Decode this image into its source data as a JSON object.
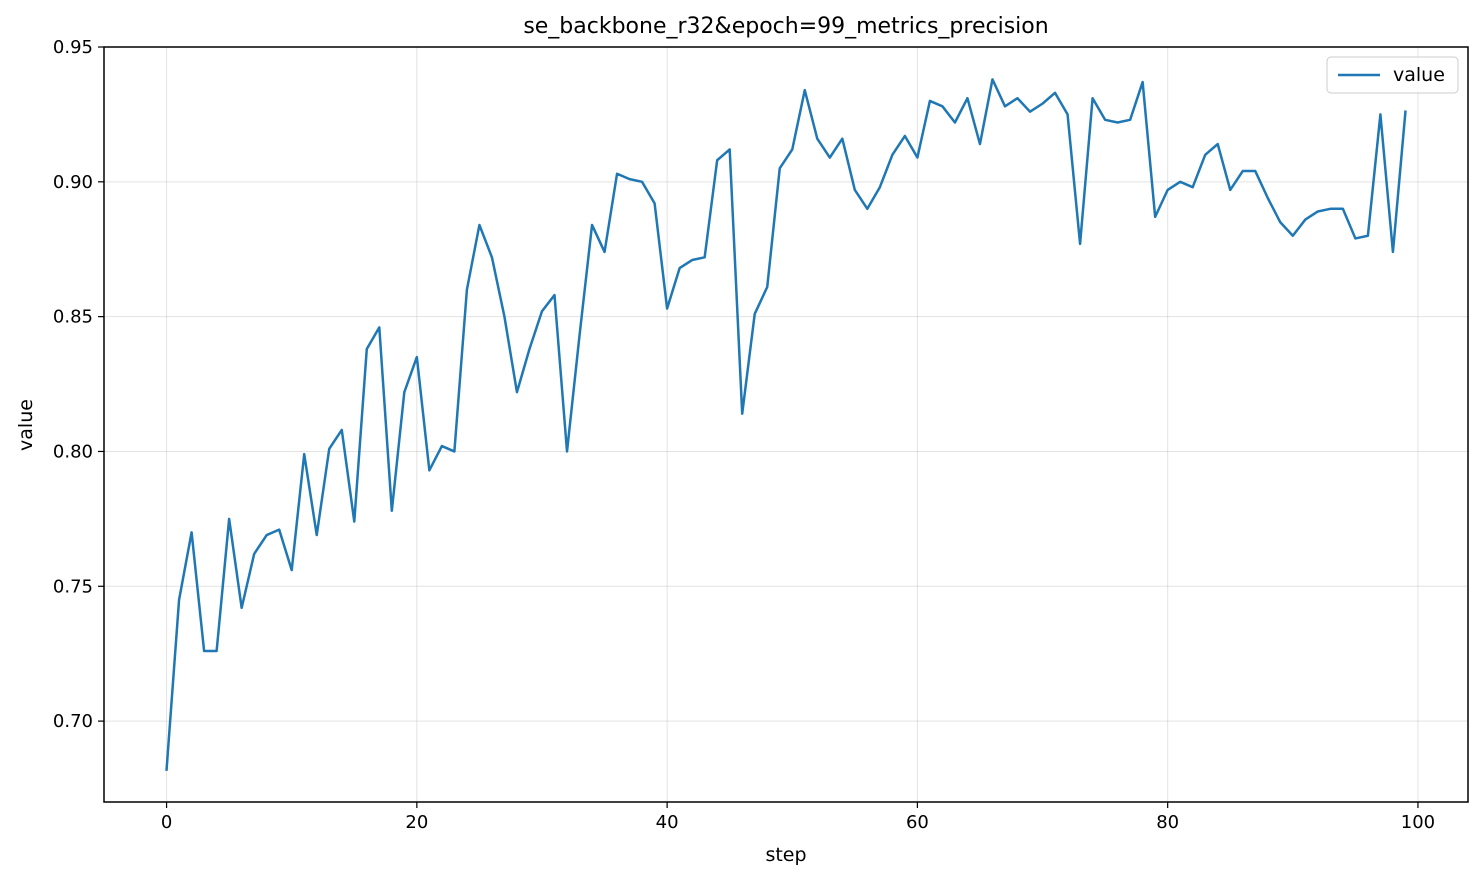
{
  "chart_data": {
    "type": "line",
    "title": "se_backbone_r32&epoch=99_metrics_precision",
    "xlabel": "step",
    "ylabel": "value",
    "xlim": [
      -5,
      104
    ],
    "ylim": [
      0.67,
      0.95
    ],
    "xticks": [
      0,
      20,
      40,
      60,
      80,
      100
    ],
    "xtick_labels": [
      "0",
      "20",
      "40",
      "60",
      "80",
      "100"
    ],
    "yticks": [
      0.7,
      0.75,
      0.8,
      0.85,
      0.9,
      0.95
    ],
    "ytick_labels": [
      "0.70",
      "0.75",
      "0.80",
      "0.85",
      "0.90",
      "0.95"
    ],
    "grid": true,
    "legend_position": "top-right",
    "series": [
      {
        "name": "value",
        "color": "#1f77b4",
        "x": [
          0,
          1,
          2,
          3,
          4,
          5,
          6,
          7,
          8,
          9,
          10,
          11,
          12,
          13,
          14,
          15,
          16,
          17,
          18,
          19,
          20,
          21,
          22,
          23,
          24,
          25,
          26,
          27,
          28,
          29,
          30,
          31,
          32,
          33,
          34,
          35,
          36,
          37,
          38,
          39,
          40,
          41,
          42,
          43,
          44,
          45,
          46,
          47,
          48,
          49,
          50,
          51,
          52,
          53,
          54,
          55,
          56,
          57,
          58,
          59,
          60,
          61,
          62,
          63,
          64,
          65,
          66,
          67,
          68,
          69,
          70,
          71,
          72,
          73,
          74,
          75,
          76,
          77,
          78,
          79,
          80,
          81,
          82,
          83,
          84,
          85,
          86,
          87,
          88,
          89,
          90,
          91,
          92,
          93,
          94,
          95,
          96,
          97,
          98,
          99
        ],
        "values": [
          0.682,
          0.745,
          0.77,
          0.726,
          0.726,
          0.775,
          0.742,
          0.762,
          0.769,
          0.771,
          0.756,
          0.799,
          0.769,
          0.801,
          0.808,
          0.774,
          0.838,
          0.846,
          0.778,
          0.822,
          0.835,
          0.793,
          0.802,
          0.8,
          0.86,
          0.884,
          0.872,
          0.85,
          0.822,
          0.838,
          0.852,
          0.858,
          0.8,
          0.843,
          0.884,
          0.874,
          0.903,
          0.901,
          0.9,
          0.892,
          0.853,
          0.868,
          0.871,
          0.872,
          0.908,
          0.912,
          0.814,
          0.851,
          0.861,
          0.905,
          0.912,
          0.934,
          0.916,
          0.909,
          0.916,
          0.897,
          0.89,
          0.898,
          0.91,
          0.917,
          0.909,
          0.93,
          0.928,
          0.922,
          0.931,
          0.914,
          0.938,
          0.928,
          0.931,
          0.926,
          0.929,
          0.933,
          0.925,
          0.877,
          0.931,
          0.923,
          0.922,
          0.923,
          0.937,
          0.887,
          0.897,
          0.9,
          0.898,
          0.91,
          0.914,
          0.897,
          0.904,
          0.904,
          0.894,
          0.885,
          0.88,
          0.886,
          0.889,
          0.89,
          0.89,
          0.879,
          0.88,
          0.925,
          0.874,
          0.926
        ]
      }
    ]
  }
}
